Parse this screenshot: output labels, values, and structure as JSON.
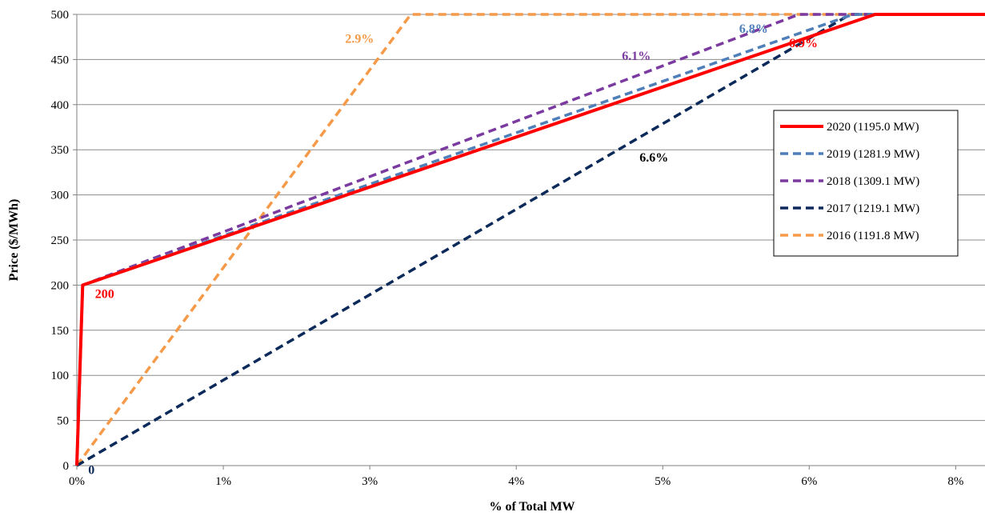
{
  "chart_data": {
    "type": "line",
    "xlabel": "% of Total MW",
    "ylabel": "Price ($/MWh)",
    "x_ticks": [
      {
        "value": 0,
        "label": "0%"
      },
      {
        "value": 1,
        "label": "1%"
      },
      {
        "value": 2,
        "label": "3%"
      },
      {
        "value": 3,
        "label": "4%"
      },
      {
        "value": 4,
        "label": "5%"
      },
      {
        "value": 5,
        "label": "6%"
      },
      {
        "value": 6,
        "label": "8%"
      }
    ],
    "xlim": [
      0,
      6.2
    ],
    "ylim": [
      0,
      500
    ],
    "y_ticks": [
      0,
      50,
      100,
      150,
      200,
      250,
      300,
      350,
      400,
      450,
      500
    ],
    "grid": "horizontal",
    "legend_position": "right",
    "series": [
      {
        "name": "2016 (1191.8 MW)",
        "color": "#f59a48",
        "dash": "dashed",
        "points": [
          [
            0.0,
            0
          ],
          [
            2.28,
            500
          ],
          [
            6.2,
            500
          ]
        ]
      },
      {
        "name": "2017 (1219.1 MW)",
        "color": "#0b2a5a",
        "dash": "dashed",
        "points": [
          [
            0.0,
            0
          ],
          [
            5.28,
            500
          ],
          [
            6.2,
            500
          ]
        ]
      },
      {
        "name": "2018 (1309.1 MW)",
        "color": "#7a3aa0",
        "dash": "dashed",
        "points": [
          [
            0.0,
            0
          ],
          [
            0.04,
            200
          ],
          [
            4.93,
            500
          ],
          [
            6.2,
            500
          ]
        ]
      },
      {
        "name": "2019 (1281.9 MW)",
        "color": "#4f7fb8",
        "dash": "dashed",
        "points": [
          [
            0.0,
            0
          ],
          [
            0.04,
            200
          ],
          [
            5.3,
            500
          ],
          [
            6.2,
            500
          ]
        ]
      },
      {
        "name": "2020 (1195.0 MW)",
        "color": "#ff0000",
        "dash": "solid",
        "points": [
          [
            0.0,
            0
          ],
          [
            0.04,
            200
          ],
          [
            5.45,
            500
          ],
          [
            6.2,
            500
          ]
        ]
      }
    ],
    "legend_order": [
      4,
      3,
      2,
      1,
      0
    ],
    "annotations": [
      {
        "text": "2.9%",
        "x": 1.93,
        "y": 474,
        "color": "#f59a48"
      },
      {
        "text": "6.1%",
        "x": 3.82,
        "y": 455,
        "color": "#7a3aa0"
      },
      {
        "text": "6.8%",
        "x": 4.62,
        "y": 485,
        "color": "#4f7fb8"
      },
      {
        "text": "6.9%",
        "x": 4.96,
        "y": 469,
        "color": "#ff0000"
      },
      {
        "text": "6.6%",
        "x": 3.94,
        "y": 342,
        "color": "#000000"
      },
      {
        "text": "200",
        "x": 0.19,
        "y": 191,
        "color": "#ff0000"
      },
      {
        "text": "0",
        "x": 0.1,
        "y": -4,
        "color": "#0b2a5a"
      }
    ]
  }
}
